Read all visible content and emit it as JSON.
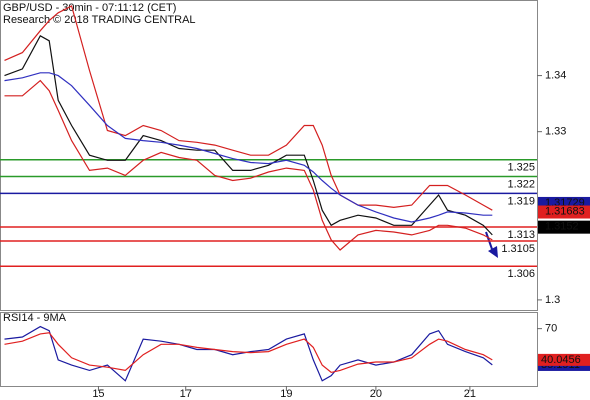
{
  "chart_data": [
    {
      "type": "line",
      "title": "GBP/USD - 30min - 07:11:12 (CET)",
      "subtitle": "Research © 2018 TRADING CENTRAL",
      "x": [
        1,
        5,
        9,
        11,
        13,
        16,
        20,
        24,
        28,
        32,
        36,
        40,
        44,
        48,
        52,
        56,
        60,
        64,
        68,
        70,
        72,
        74,
        76,
        80,
        84,
        88,
        92,
        96,
        98,
        100,
        104,
        108,
        110
      ],
      "series": [
        {
          "color": "#111111",
          "values": [
            1.34,
            1.3412,
            1.3471,
            1.3462,
            1.3356,
            1.3311,
            1.3258,
            1.3249,
            1.3249,
            1.3293,
            1.3284,
            1.327,
            1.3267,
            1.3267,
            1.3231,
            1.3231,
            1.324,
            1.3258,
            1.3258,
            1.3213,
            1.316,
            1.3133,
            1.3142,
            1.3151,
            1.3146,
            1.3133,
            1.3133,
            1.3169,
            1.3187,
            1.316,
            1.3151,
            1.3133,
            1.3116
          ]
        },
        {
          "color": "#d42020",
          "values": [
            1.3427,
            1.3441,
            1.348,
            1.3498,
            1.3512,
            1.3524,
            1.3409,
            1.3302,
            1.3293,
            1.3311,
            1.3302,
            1.3284,
            1.3281,
            1.3276,
            1.3267,
            1.3258,
            1.3258,
            1.3276,
            1.3311,
            1.3311,
            1.3276,
            1.3222,
            1.3187,
            1.3169,
            1.3169,
            1.3165,
            1.3169,
            1.3204,
            1.3204,
            1.3204,
            1.3187,
            1.3169,
            1.316
          ]
        },
        {
          "color": "#d42020",
          "values": [
            1.3364,
            1.3364,
            1.3391,
            1.3373,
            1.3338,
            1.3284,
            1.3231,
            1.3235,
            1.3222,
            1.3249,
            1.3263,
            1.3254,
            1.3249,
            1.3222,
            1.3213,
            1.3217,
            1.3228,
            1.3235,
            1.3231,
            1.3196,
            1.3142,
            1.3107,
            1.3089,
            1.3116,
            1.3124,
            1.3121,
            1.3116,
            1.3124,
            1.3133,
            1.3133,
            1.3128,
            1.3116,
            1.3107
          ]
        },
        {
          "color": "#3030c0",
          "values": [
            1.3391,
            1.3396,
            1.3405,
            1.3405,
            1.34,
            1.3382,
            1.3347,
            1.3311,
            1.3288,
            1.3284,
            1.3281,
            1.3276,
            1.327,
            1.3261,
            1.3252,
            1.3245,
            1.3243,
            1.3249,
            1.324,
            1.3228,
            1.3213,
            1.3199,
            1.3187,
            1.3169,
            1.3157,
            1.3146,
            1.3139,
            1.3146,
            1.3151,
            1.3157,
            1.3155,
            1.3151,
            1.3151
          ]
        }
      ],
      "levels": [
        {
          "value": 1.325,
          "color": "#2a9a2a"
        },
        {
          "value": 1.322,
          "color": "#2a9a2a"
        },
        {
          "value": 1.319,
          "color": "#1a1aa0"
        },
        {
          "value": 1.313,
          "color": "#e02020"
        },
        {
          "value": 1.3105,
          "color": "#e02020"
        },
        {
          "value": 1.306,
          "color": "#e02020"
        }
      ],
      "markers": [
        {
          "value": 1.31729,
          "color": "#1a1aa0"
        },
        {
          "value": 1.31683,
          "color": "#e02020"
        },
        {
          "value": 1.3152,
          "color": "#000000"
        }
      ],
      "xlim": [
        0,
        120
      ],
      "ylim": [
        1.2982,
        1.3533
      ],
      "yticks": [
        1.3,
        1.33,
        1.34
      ]
    },
    {
      "type": "line",
      "title": "RSI14 - 9MA",
      "x": [
        1,
        5,
        9,
        11,
        13,
        16,
        20,
        24,
        28,
        32,
        36,
        40,
        44,
        48,
        52,
        56,
        60,
        64,
        68,
        70,
        72,
        74,
        76,
        80,
        84,
        88,
        92,
        96,
        98,
        100,
        104,
        108,
        110
      ],
      "series": [
        {
          "color": "#1a1aa0",
          "values": [
            60,
            62,
            72,
            68,
            40,
            35,
            30,
            35,
            20,
            60,
            58,
            55,
            50,
            50,
            45,
            48,
            50,
            60,
            65,
            40,
            20,
            25,
            35,
            40,
            35,
            38,
            45,
            65,
            68,
            55,
            48,
            42,
            35.1911
          ]
        },
        {
          "color": "#e02020",
          "values": [
            55,
            58,
            65,
            66,
            55,
            42,
            35,
            33,
            30,
            45,
            55,
            55,
            52,
            50,
            48,
            47,
            48,
            55,
            60,
            52,
            35,
            28,
            30,
            36,
            38,
            38,
            42,
            55,
            60,
            58,
            50,
            45,
            40.0456
          ]
        }
      ],
      "xlim": [
        0,
        120
      ],
      "ylim": [
        15,
        85
      ],
      "yticks": [
        70
      ],
      "xticks": [
        {
          "value": 22,
          "label": "15"
        },
        {
          "value": 41.5,
          "label": "17"
        },
        {
          "value": 64,
          "label": "19"
        },
        {
          "value": 84,
          "label": "20"
        },
        {
          "value": 105,
          "label": "21"
        }
      ]
    }
  ]
}
